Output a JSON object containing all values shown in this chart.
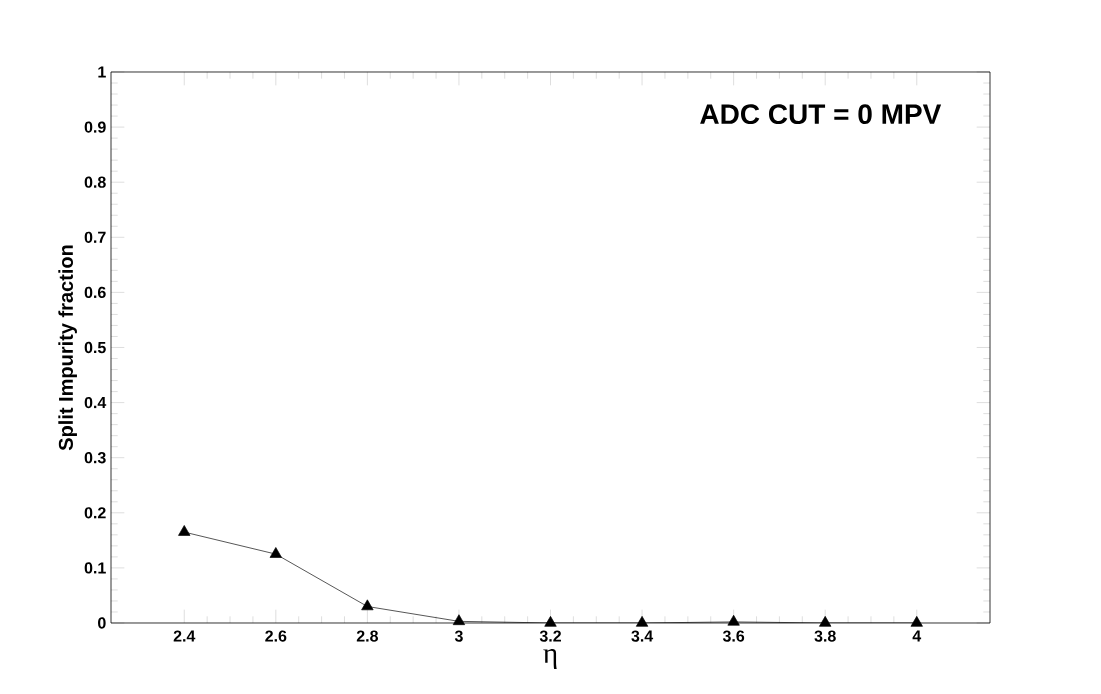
{
  "chart_data": {
    "type": "line",
    "xlabel": "η",
    "ylabel": "Split Impurity fraction",
    "annotations": [
      "ADC CUT = 0 MPV"
    ],
    "x": [
      2.4,
      2.6,
      2.8,
      3.0,
      3.2,
      3.4,
      3.6,
      3.8,
      4.0
    ],
    "series": [
      {
        "color": "#000000",
        "values": [
          0.165,
          0.125,
          0.03,
          0.003,
          0,
          0,
          0.002,
          0,
          0
        ]
      }
    ],
    "xlim": [
      2.24,
      4.16
    ],
    "ylim": [
      0,
      1
    ],
    "xticks": [
      2.4,
      2.6,
      2.8,
      3,
      3.2,
      3.4,
      3.6,
      3.8,
      4
    ],
    "yticks": [
      0,
      0.1,
      0.2,
      0.3,
      0.4,
      0.5,
      0.6,
      0.7,
      0.8,
      0.9,
      1
    ],
    "marker": "triangle",
    "line_style": "solid"
  }
}
